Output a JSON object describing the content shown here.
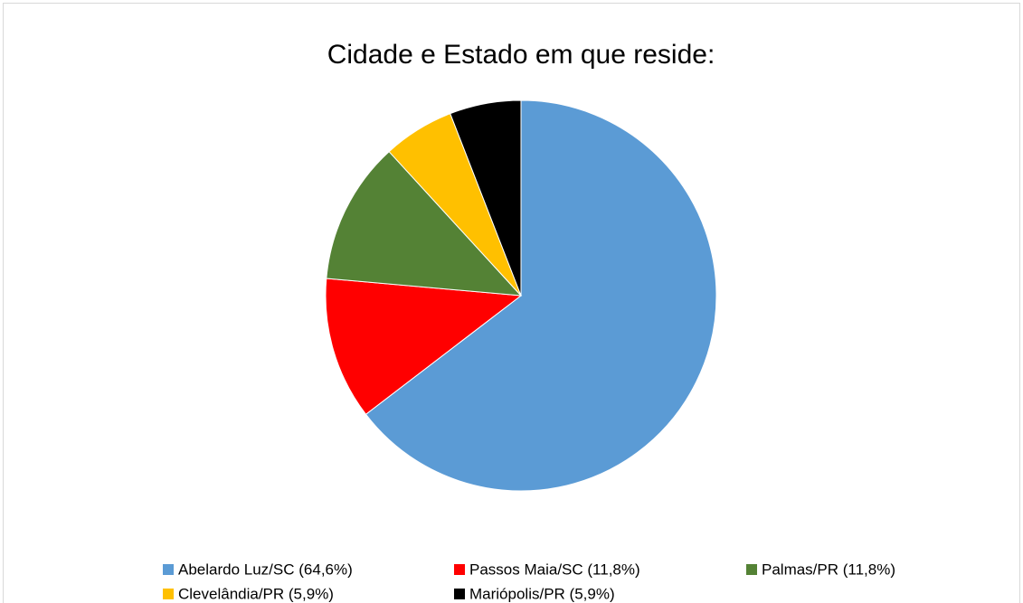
{
  "chart_data": {
    "type": "pie",
    "title": "Cidade e Estado em que reside:",
    "categories": [
      "Abelardo Luz/SC (64,6%)",
      "Passos Maia/SC (11,8%)",
      "Palmas/PR (11,8%)",
      "Clevelândia/PR (5,9%)",
      "Mariópolis/PR (5,9%)"
    ],
    "values": [
      64.6,
      11.8,
      11.8,
      5.9,
      5.9
    ],
    "colors": [
      "#5b9bd5",
      "#ff0000",
      "#548235",
      "#ffc000",
      "#000000"
    ],
    "legend": "bottom"
  }
}
